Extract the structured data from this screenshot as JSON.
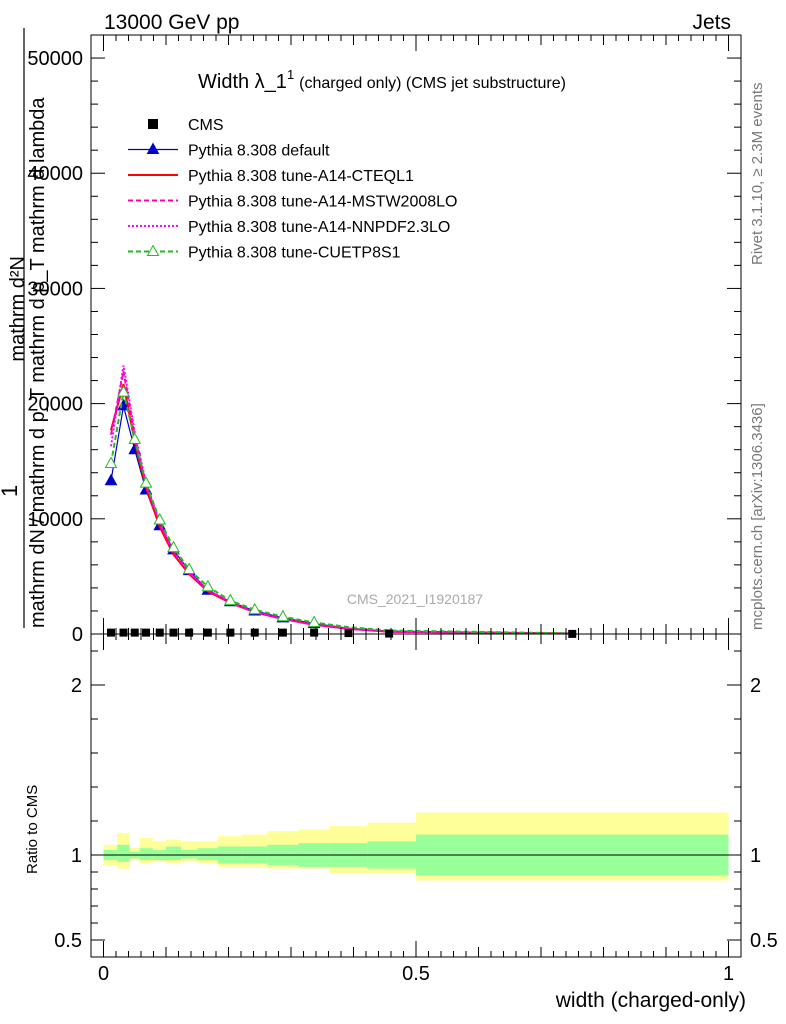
{
  "header": {
    "left": "13000 GeV pp",
    "right": "Jets"
  },
  "side_labels": {
    "rivet": "Rivet 3.1.10, ≥ 2.3M events",
    "mcplots": "mcplots.cern.ch [arXiv:1306.3436]"
  },
  "watermark": "CMS_2021_I1920187",
  "chart_data": [
    {
      "type": "line",
      "title_main": "Width λ_1",
      "title_sup": "1",
      "title_rest": "(charged only) (CMS jet substructure)",
      "ylabel_parts": [
        "1",
        "mathrm dN / mathrm d p",
        "T",
        "mathrm d p",
        "T",
        "mathrm d lambda",
        "mathrm d",
        "2",
        "N"
      ],
      "ylabel_frac_num": "1",
      "ylabel_frac_den": "mathrm dN / mathrm d p_T mathrm d p_T mathrm d lambda",
      "ylabel_top": "mathrm d²N",
      "ylabel_bottom": "mathrm dN / mathrm d p_T mathrm d p_T mathrm d lambda",
      "xlim": [
        -0.02,
        1.02
      ],
      "ylim": [
        0,
        52000
      ],
      "y_ticks": [
        0,
        10000,
        20000,
        30000,
        40000,
        50000
      ],
      "y_tick_labels": [
        "0",
        "10000",
        "20000",
        "30000",
        "40000",
        "50000"
      ],
      "legend_position": "top-left",
      "legend": [
        {
          "label": "CMS",
          "color": "#000000",
          "style": "marker-square"
        },
        {
          "label": "Pythia 8.308 default",
          "color": "#0000cc",
          "style": "solid-triangle"
        },
        {
          "label": "Pythia 8.308 tune-A14-CTEQL1",
          "color": "#ff0000",
          "style": "solid"
        },
        {
          "label": "Pythia 8.308 tune-A14-MSTW2008LO",
          "color": "#ff00aa",
          "style": "dashed"
        },
        {
          "label": "Pythia 8.308 tune-A14-NNPDF2.3LO",
          "color": "#ff00ff",
          "style": "dotted"
        },
        {
          "label": "Pythia 8.308 tune-CUETP8S1",
          "color": "#22bb22",
          "style": "dashed-open-triangle"
        }
      ],
      "x": [
        0.012,
        0.032,
        0.05,
        0.068,
        0.09,
        0.112,
        0.137,
        0.167,
        0.203,
        0.242,
        0.287,
        0.337,
        0.392,
        0.457,
        0.75
      ],
      "series": [
        {
          "name": "CMS",
          "color": "#000000",
          "values": [
            120,
            120,
            120,
            120,
            120,
            120,
            120,
            120,
            120,
            120,
            120,
            120,
            80,
            40,
            10
          ]
        },
        {
          "name": "Pythia 8.308 default",
          "color": "#0000cc",
          "values": [
            13300,
            19800,
            16000,
            12500,
            9400,
            7300,
            5500,
            3800,
            2800,
            2000,
            1400,
            900,
            500,
            250,
            50
          ]
        },
        {
          "name": "Pythia 8.308 tune-A14-CTEQL1",
          "color": "#ff0000",
          "values": [
            17700,
            21700,
            16700,
            12700,
            9300,
            6900,
            5200,
            3700,
            2700,
            1900,
            1300,
            800,
            450,
            200,
            40
          ]
        },
        {
          "name": "Pythia 8.308 tune-A14-MSTW2008LO",
          "color": "#ff00aa",
          "values": [
            17300,
            22800,
            17200,
            12900,
            9500,
            7100,
            5300,
            3800,
            2700,
            1900,
            1300,
            800,
            450,
            200,
            40
          ]
        },
        {
          "name": "Pythia 8.308 tune-A14-NNPDF2.3LO",
          "color": "#ff00ff",
          "values": [
            16300,
            23300,
            17500,
            13100,
            9700,
            7200,
            5400,
            3800,
            2800,
            1900,
            1300,
            800,
            450,
            200,
            40
          ]
        },
        {
          "name": "Pythia 8.308 tune-CUETP8S1",
          "color": "#22bb22",
          "values": [
            14800,
            21000,
            16900,
            13100,
            9900,
            7500,
            5600,
            4100,
            2900,
            2100,
            1500,
            1000,
            600,
            300,
            60
          ]
        }
      ]
    },
    {
      "type": "area",
      "ylabel": "Ratio to CMS",
      "xlabel": "width (charged-only)",
      "xlim": [
        -0.02,
        1.02
      ],
      "ylim": [
        0.4,
        2.3
      ],
      "x_ticks": [
        0,
        0.5,
        1
      ],
      "x_tick_labels": [
        "0",
        "0.5",
        "1"
      ],
      "y_ticks": [
        0.5,
        1,
        2
      ],
      "y_tick_labels": [
        "0.5",
        "1",
        "2"
      ],
      "bin_edges": [
        0.0,
        0.022,
        0.042,
        0.058,
        0.079,
        0.1,
        0.124,
        0.15,
        0.183,
        0.222,
        0.262,
        0.312,
        0.362,
        0.422,
        0.5,
        1.0
      ],
      "band_inner": [
        [
          0.97,
          1.03
        ],
        [
          0.96,
          1.06
        ],
        [
          0.98,
          1.02
        ],
        [
          0.97,
          1.04
        ],
        [
          0.97,
          1.03
        ],
        [
          0.97,
          1.05
        ],
        [
          0.98,
          1.03
        ],
        [
          0.97,
          1.04
        ],
        [
          0.95,
          1.05
        ],
        [
          0.95,
          1.05
        ],
        [
          0.94,
          1.06
        ],
        [
          0.93,
          1.07
        ],
        [
          0.93,
          1.07
        ],
        [
          0.92,
          1.08
        ],
        [
          0.88,
          1.12
        ]
      ],
      "band_outer": [
        [
          0.94,
          1.06
        ],
        [
          0.92,
          1.13
        ],
        [
          0.97,
          1.04
        ],
        [
          0.95,
          1.1
        ],
        [
          0.96,
          1.08
        ],
        [
          0.95,
          1.09
        ],
        [
          0.96,
          1.08
        ],
        [
          0.95,
          1.08
        ],
        [
          0.93,
          1.11
        ],
        [
          0.93,
          1.12
        ],
        [
          0.92,
          1.14
        ],
        [
          0.92,
          1.15
        ],
        [
          0.89,
          1.17
        ],
        [
          0.89,
          1.19
        ],
        [
          0.85,
          1.25
        ]
      ],
      "band_colors": {
        "inner": "#99ff99",
        "outer": "#ffff99"
      }
    }
  ]
}
